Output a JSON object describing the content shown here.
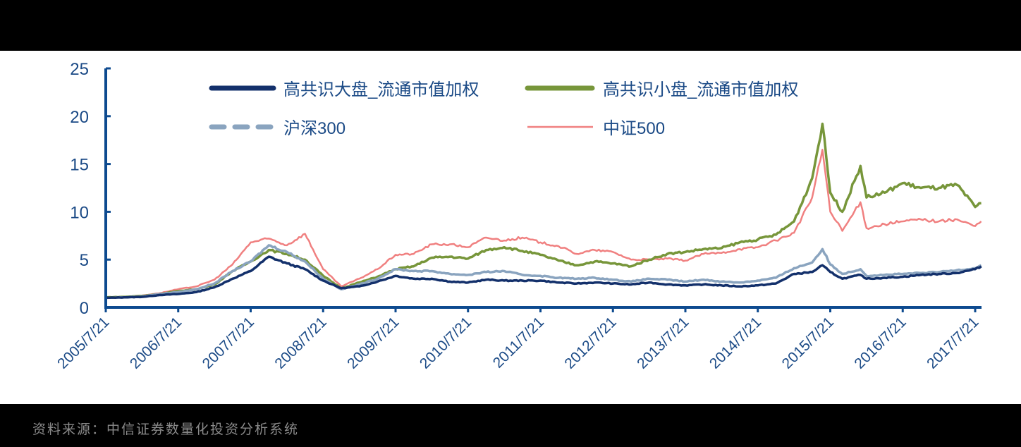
{
  "chart_data": {
    "type": "line",
    "title": "",
    "xlabel": "",
    "ylabel": "",
    "ylim": [
      0,
      25
    ],
    "yticks": [
      0,
      5,
      10,
      15,
      20,
      25
    ],
    "grid": false,
    "legend_position": "top-inside",
    "x": [
      "2005/7/21",
      "2005/10/21",
      "2006/1/21",
      "2006/4/21",
      "2006/7/21",
      "2006/10/21",
      "2007/1/21",
      "2007/4/21",
      "2007/7/21",
      "2007/10/21",
      "2008/1/21",
      "2008/4/21",
      "2008/7/21",
      "2008/10/21",
      "2009/1/21",
      "2009/4/21",
      "2009/7/21",
      "2009/10/21",
      "2010/1/21",
      "2010/4/21",
      "2010/7/21",
      "2010/10/21",
      "2011/1/21",
      "2011/4/21",
      "2011/7/21",
      "2011/10/21",
      "2012/1/21",
      "2012/4/21",
      "2012/7/21",
      "2012/10/21",
      "2013/1/21",
      "2013/4/21",
      "2013/7/21",
      "2013/10/21",
      "2014/1/21",
      "2014/4/21",
      "2014/7/21",
      "2014/10/21",
      "2015/1/21",
      "2015/4/21",
      "2015/6/12",
      "2015/7/21",
      "2015/9/21",
      "2015/12/21",
      "2016/1/21",
      "2016/4/21",
      "2016/7/21",
      "2016/10/21",
      "2017/1/21",
      "2017/4/21",
      "2017/7/21",
      "2017/8/21"
    ],
    "xticks": [
      "2005/7/21",
      "2006/7/21",
      "2007/7/21",
      "2008/7/21",
      "2009/7/21",
      "2010/7/21",
      "2011/7/21",
      "2012/7/21",
      "2013/7/21",
      "2014/7/21",
      "2015/7/21",
      "2016/7/21",
      "2017/7/21"
    ],
    "series": [
      {
        "name": "高共识大盘_流通市值加权",
        "color": "#13306b",
        "style": "solid",
        "width": 4,
        "values": [
          1.0,
          1.05,
          1.1,
          1.3,
          1.4,
          1.6,
          2.1,
          3.0,
          3.8,
          5.3,
          4.6,
          4.0,
          2.8,
          2.0,
          2.2,
          2.7,
          3.3,
          3.0,
          3.0,
          2.7,
          2.6,
          2.9,
          2.8,
          2.8,
          2.8,
          2.6,
          2.5,
          2.6,
          2.5,
          2.4,
          2.6,
          2.4,
          2.3,
          2.4,
          2.3,
          2.2,
          2.3,
          2.5,
          3.5,
          3.7,
          4.4,
          3.7,
          3.0,
          3.4,
          3.0,
          3.1,
          3.2,
          3.4,
          3.5,
          3.6,
          4.0,
          4.3
        ]
      },
      {
        "name": "高共识小盘_流通市值加权",
        "color": "#77963a",
        "style": "solid",
        "width": 5,
        "values": [
          1.05,
          1.1,
          1.2,
          1.4,
          1.7,
          1.9,
          2.4,
          3.8,
          4.8,
          6.0,
          5.6,
          5.0,
          3.3,
          2.0,
          2.6,
          3.2,
          4.0,
          4.3,
          5.2,
          5.3,
          5.1,
          6.0,
          6.3,
          5.9,
          5.5,
          4.9,
          4.4,
          4.8,
          4.6,
          4.3,
          5.0,
          5.6,
          5.8,
          6.1,
          6.2,
          6.8,
          7.1,
          7.6,
          9.0,
          13.5,
          19.2,
          12.0,
          10.0,
          14.8,
          11.5,
          12.0,
          13.0,
          12.5,
          12.5,
          12.8,
          10.5,
          10.9
        ]
      },
      {
        "name": "沪深300",
        "color": "#8aa4bf",
        "style": "dashed",
        "width": 5,
        "values": [
          1.0,
          1.05,
          1.15,
          1.4,
          1.6,
          1.9,
          2.5,
          3.8,
          4.8,
          6.5,
          5.8,
          4.8,
          3.0,
          1.9,
          2.4,
          3.0,
          4.0,
          3.8,
          3.8,
          3.5,
          3.4,
          3.7,
          3.8,
          3.4,
          3.3,
          3.1,
          3.0,
          3.1,
          2.9,
          2.7,
          3.0,
          2.9,
          2.7,
          2.9,
          2.7,
          2.6,
          2.8,
          3.1,
          4.1,
          4.7,
          6.1,
          4.5,
          3.5,
          4.0,
          3.3,
          3.4,
          3.5,
          3.6,
          3.7,
          3.9,
          4.1,
          4.4
        ]
      },
      {
        "name": "中证500",
        "color": "#f08080",
        "style": "solid",
        "width": 2,
        "values": [
          1.0,
          1.1,
          1.25,
          1.5,
          1.9,
          2.2,
          2.9,
          4.5,
          6.8,
          7.2,
          6.5,
          7.7,
          4.0,
          2.2,
          3.0,
          4.0,
          5.5,
          5.6,
          6.6,
          6.6,
          6.3,
          7.3,
          7.0,
          7.3,
          6.8,
          6.4,
          5.6,
          6.0,
          5.8,
          5.0,
          5.0,
          5.1,
          4.9,
          5.6,
          5.7,
          6.1,
          6.3,
          7.0,
          7.8,
          11.5,
          16.5,
          10.0,
          8.0,
          11.0,
          8.3,
          8.7,
          9.0,
          9.2,
          9.0,
          9.2,
          8.5,
          9.0
        ]
      }
    ]
  },
  "legend": [
    {
      "label": "高共识大盘_流通市值加权"
    },
    {
      "label": "高共识小盘_流通市值加权"
    },
    {
      "label": "沪深300"
    },
    {
      "label": "中证500"
    }
  ],
  "footer": {
    "source": "资料来源：中信证券数量化投资分析系统"
  }
}
